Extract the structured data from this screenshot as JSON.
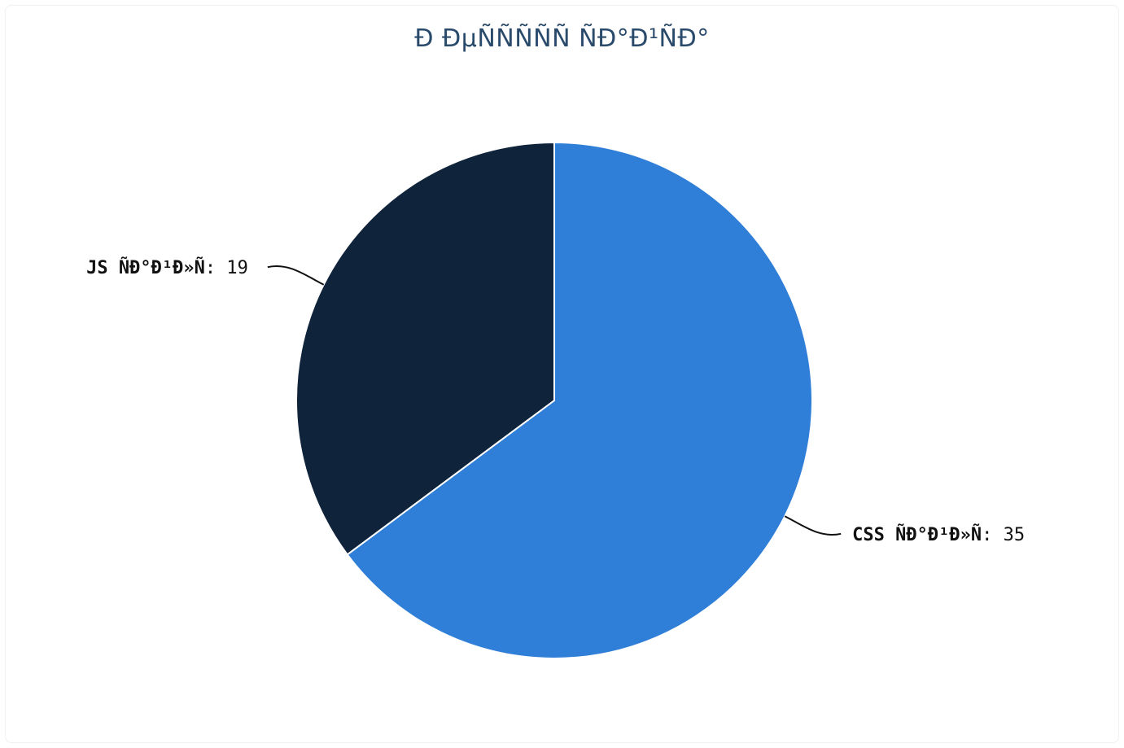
{
  "chart_data": {
    "type": "pie",
    "title": "Ð ÐµÑÑÑÑÑ ÑÐ°Ð¹ÑÐ°",
    "slices": [
      {
        "label": "CSS ÑÐ°Ð¹Ð»Ñ",
        "value": 35,
        "color": "#2f7ed8",
        "label_side": "right"
      },
      {
        "label": "JS ÑÐ°Ð¹Ð»Ñ",
        "value": 19,
        "color": "#0f233a",
        "label_side": "left"
      }
    ],
    "label_separator": ": ",
    "start": "top",
    "direction": "clockwise"
  }
}
